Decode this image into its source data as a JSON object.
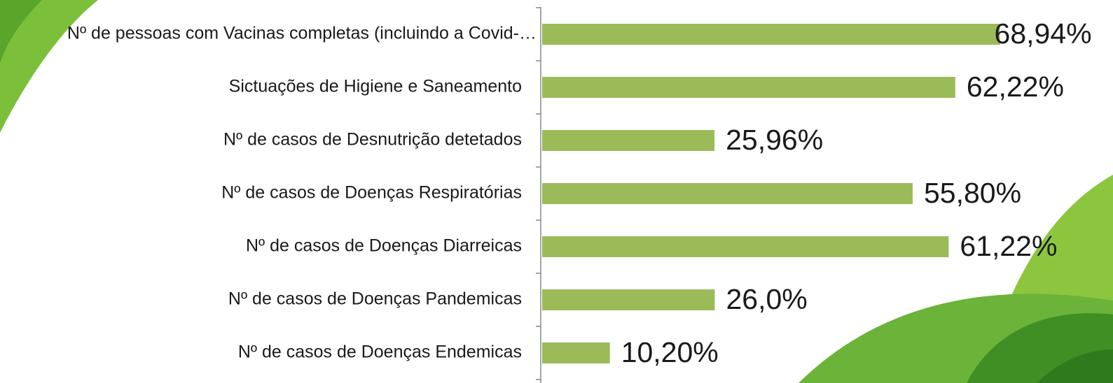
{
  "chart_data": {
    "type": "bar",
    "orientation": "horizontal",
    "categories": [
      "Nº de pessoas com Vacinas completas (incluindo a Covid-…",
      "Sictuações de Higiene e Saneamento",
      "Nº de casos de Desnutrição detetados",
      "Nº de casos de Doenças Respiratórias",
      "Nº de casos de Doenças Diarreicas",
      "Nº de casos de Doenças Pandemicas",
      "Nº de casos de Doenças Endemicas"
    ],
    "values": [
      68.94,
      62.22,
      25.96,
      55.8,
      61.22,
      26.0,
      10.2
    ],
    "value_labels": [
      "68,94%",
      "62,22%",
      "25,96%",
      "55,80%",
      "61,22%",
      "26,0%",
      "10,20%"
    ],
    "color": "#9bbb59"
  }
}
